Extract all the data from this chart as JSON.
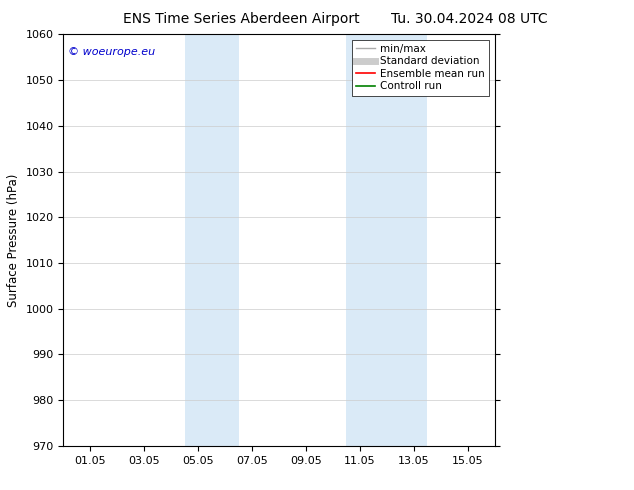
{
  "title": "ENS Time Series Aberdeen Airport",
  "title2": "Tu. 30.04.2024 08 UTC",
  "ylabel": "Surface Pressure (hPa)",
  "ylim": [
    970,
    1060
  ],
  "yticks": [
    970,
    980,
    990,
    1000,
    1010,
    1020,
    1030,
    1040,
    1050,
    1060
  ],
  "xtick_labels": [
    "01.05",
    "03.05",
    "05.05",
    "07.05",
    "09.05",
    "11.05",
    "13.05",
    "15.05"
  ],
  "xtick_positions": [
    1,
    3,
    5,
    7,
    9,
    11,
    13,
    15
  ],
  "xlim": [
    0,
    16
  ],
  "shaded_bands": [
    {
      "xmin": 4.5,
      "xmax": 6.5
    },
    {
      "xmin": 10.5,
      "xmax": 13.5
    }
  ],
  "shade_color": "#daeaf7",
  "watermark_text": "© woeurope.eu",
  "watermark_color": "#0000cc",
  "legend_items": [
    {
      "label": "min/max",
      "color": "#aaaaaa",
      "lw": 1
    },
    {
      "label": "Standard deviation",
      "color": "#cccccc",
      "lw": 5
    },
    {
      "label": "Ensemble mean run",
      "color": "#ff0000",
      "lw": 1.2
    },
    {
      "label": "Controll run",
      "color": "#008000",
      "lw": 1.2
    }
  ],
  "bg_color": "#ffffff",
  "grid_color": "#cccccc",
  "title_fontsize": 10,
  "ylabel_fontsize": 8.5,
  "tick_fontsize": 8,
  "legend_fontsize": 7.5,
  "watermark_fontsize": 8
}
